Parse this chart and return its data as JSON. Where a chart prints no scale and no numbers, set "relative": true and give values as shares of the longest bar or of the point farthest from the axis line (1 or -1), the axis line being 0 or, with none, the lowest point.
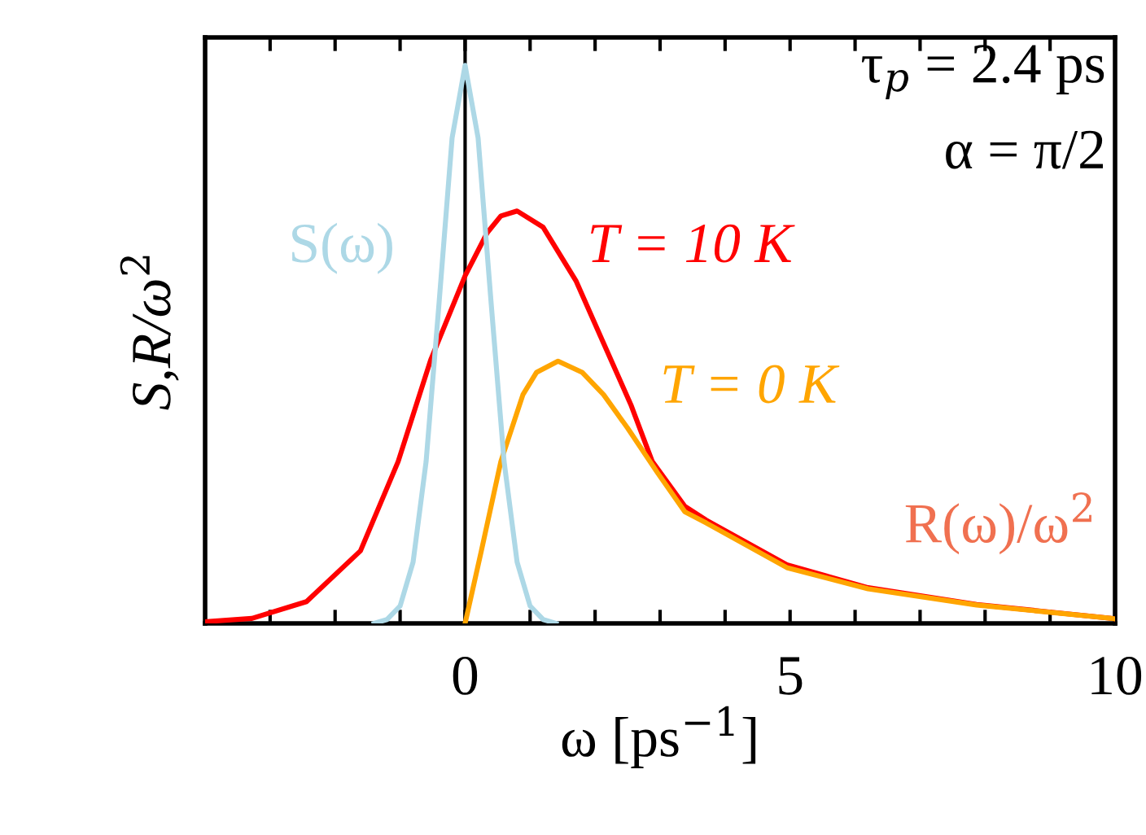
{
  "chart_data": {
    "type": "line",
    "relative": true,
    "xlabel": "ω [ps$^{−1}$]",
    "ylabel": "S,R/ω$^{2}$",
    "xlim": [
      -4,
      10
    ],
    "xticks": [
      {
        "value": -3,
        "label": null
      },
      {
        "value": -2,
        "label": null
      },
      {
        "value": -1,
        "label": null
      },
      0,
      {
        "value": 1,
        "label": null
      },
      {
        "value": 2,
        "label": null
      },
      {
        "value": 3,
        "label": null
      },
      {
        "value": 4,
        "label": null
      },
      5,
      {
        "value": 6,
        "label": null
      },
      {
        "value": 7,
        "label": null
      },
      {
        "value": 8,
        "label": null
      },
      {
        "value": 9,
        "label": null
      },
      10
    ],
    "tick_labels": "x",
    "grid": false,
    "legend": false,
    "marker": "none",
    "line_style": "solid",
    "ref_lines": [
      {
        "axis": "x",
        "value": 0,
        "color": "#000000"
      }
    ],
    "series": [
      {
        "name": "T = 10 K",
        "color": "#ff0000",
        "x": [
          -4,
          -3.28,
          -2.44,
          -1.61,
          -1.03,
          -0.53,
          0,
          0.34,
          0.55,
          0.8,
          1.2,
          1.71,
          2.1,
          2.55,
          2.88,
          3.38,
          3.71,
          4.95,
          6.2,
          7.87,
          9.94,
          10
        ],
        "values": [
          0.003,
          0.009,
          0.039,
          0.13,
          0.29,
          0.472,
          0.623,
          0.7,
          0.73,
          0.739,
          0.71,
          0.613,
          0.51,
          0.392,
          0.29,
          0.21,
          0.185,
          0.105,
          0.064,
          0.034,
          0.009,
          0.008
        ]
      },
      {
        "name": "T = 0 K",
        "color": "#ffa500",
        "x": [
          0,
          0.25,
          0.55,
          0.89,
          1.1,
          1.43,
          1.8,
          2.13,
          2.5,
          2.96,
          3.38,
          3.71,
          4.95,
          6.2,
          7.87,
          9.94,
          10
        ],
        "values": [
          0,
          0.13,
          0.29,
          0.41,
          0.45,
          0.47,
          0.45,
          0.41,
          0.35,
          0.27,
          0.2,
          0.18,
          0.1,
          0.062,
          0.033,
          0.009,
          0.008
        ]
      },
      {
        "name": "S(ω)",
        "color": "#add8e6",
        "x": [
          -1.4,
          -1.2,
          -1.0,
          -0.8,
          -0.6,
          -0.4,
          -0.2,
          0,
          0.2,
          0.4,
          0.6,
          0.8,
          1.0,
          1.2,
          1.4
        ],
        "values": [
          0,
          0.007,
          0.031,
          0.11,
          0.29,
          0.575,
          0.87,
          1,
          0.87,
          0.575,
          0.29,
          0.11,
          0.031,
          0.007,
          0
        ]
      }
    ],
    "annotations": [
      "τ$_{p}$ = 2.4 ps",
      "α = π/2",
      "R(ω)/ω$^{2}$"
    ]
  }
}
